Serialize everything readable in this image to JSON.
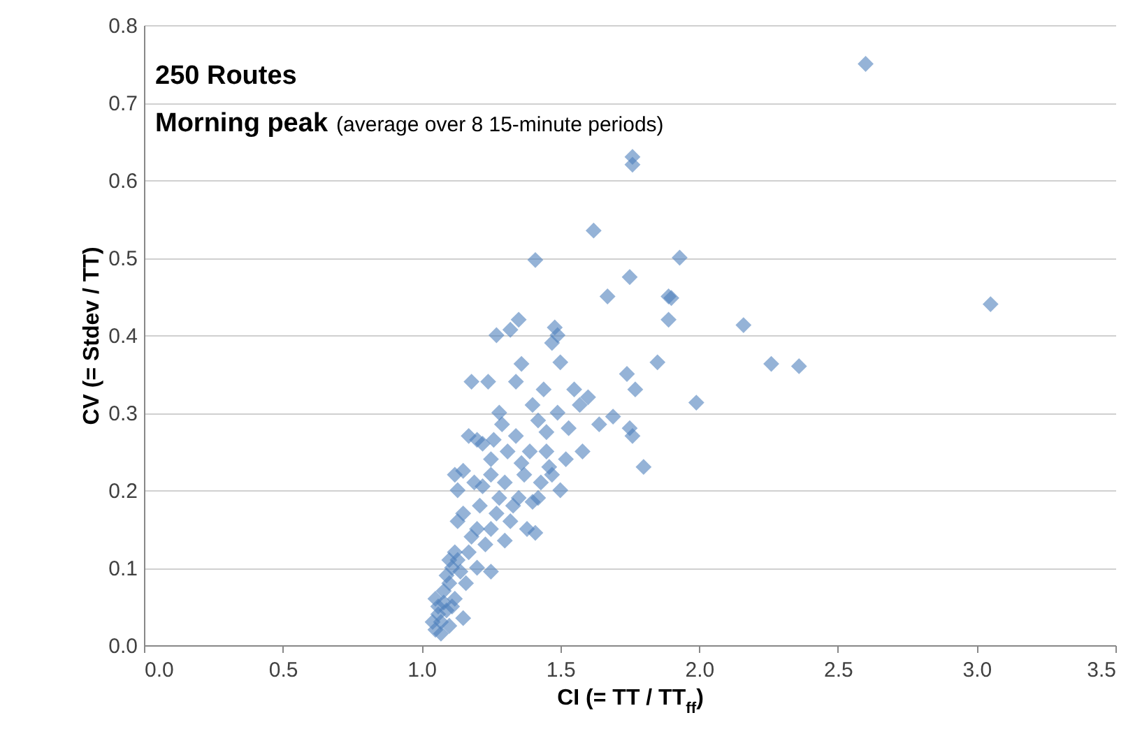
{
  "chart_data": {
    "type": "scatter",
    "title": "250 Routes",
    "annotations": [
      "Morning peak",
      "(average over 8 15-minute periods)"
    ],
    "xlabel": "CI (= TT / TT$_{ff}$)",
    "ylabel": "CV (= Stdev / TT)",
    "marker": "diamond",
    "grid": "y",
    "xlim": [
      0,
      3.5
    ],
    "xticks": [
      {
        "value": 0,
        "label": "0.0"
      },
      0.5,
      {
        "value": 1,
        "label": "1.0"
      },
      1.5,
      {
        "value": 2,
        "label": "2.0"
      },
      2.5,
      {
        "value": 3,
        "label": "3.0"
      },
      3.5
    ],
    "ylim": [
      0,
      0.8
    ],
    "yticks": [
      {
        "value": 0,
        "label": "0.0"
      },
      0.1,
      0.2,
      0.3,
      0.4,
      0.5,
      0.6,
      0.7,
      0.8
    ],
    "series": [
      {
        "color": "#4f81bd",
        "x": [
          2.6,
          3.05,
          1.76,
          1.76,
          1.62,
          1.41,
          1.93,
          1.75,
          1.89,
          1.9,
          1.67,
          1.89,
          2.16,
          1.35,
          1.27,
          1.32,
          1.48,
          1.49,
          1.47,
          1.85,
          2.26,
          2.36,
          1.74,
          1.36,
          1.5,
          1.77,
          1.99,
          1.8,
          1.76,
          1.75,
          1.69,
          1.64,
          1.6,
          1.55,
          1.57,
          1.58,
          1.52,
          1.45,
          1.42,
          1.4,
          1.44,
          1.34,
          1.18,
          1.24,
          1.28,
          1.29,
          1.2,
          1.17,
          1.22,
          1.31,
          1.25,
          1.15,
          1.12,
          1.13,
          1.19,
          1.25,
          1.3,
          1.37,
          1.43,
          1.47,
          1.4,
          1.35,
          1.28,
          1.21,
          1.15,
          1.13,
          1.2,
          1.25,
          1.32,
          1.38,
          1.41,
          1.3,
          1.23,
          1.17,
          1.12,
          1.11,
          1.14,
          1.2,
          1.25,
          1.16,
          1.1,
          1.08,
          1.12,
          1.06,
          1.09,
          1.07,
          1.05,
          1.1,
          1.15,
          1.08,
          1.06,
          1.07,
          1.11,
          1.09,
          1.13,
          1.18,
          1.22,
          1.27,
          1.33,
          1.36,
          1.39,
          1.34,
          1.45,
          1.49,
          1.53,
          1.46,
          1.5,
          1.42,
          1.26,
          1.1,
          1.05,
          1.04
        ],
        "values": [
          0.75,
          0.44,
          0.63,
          0.62,
          0.535,
          0.497,
          0.5,
          0.475,
          0.45,
          0.448,
          0.45,
          0.42,
          0.413,
          0.42,
          0.4,
          0.407,
          0.41,
          0.4,
          0.39,
          0.365,
          0.363,
          0.36,
          0.35,
          0.363,
          0.365,
          0.33,
          0.313,
          0.23,
          0.27,
          0.28,
          0.295,
          0.285,
          0.32,
          0.33,
          0.31,
          0.25,
          0.24,
          0.25,
          0.29,
          0.31,
          0.33,
          0.34,
          0.34,
          0.34,
          0.3,
          0.285,
          0.265,
          0.27,
          0.26,
          0.25,
          0.24,
          0.225,
          0.22,
          0.2,
          0.21,
          0.22,
          0.21,
          0.22,
          0.21,
          0.22,
          0.185,
          0.19,
          0.19,
          0.18,
          0.17,
          0.16,
          0.15,
          0.15,
          0.16,
          0.15,
          0.145,
          0.135,
          0.13,
          0.12,
          0.12,
          0.1,
          0.095,
          0.1,
          0.095,
          0.08,
          0.08,
          0.07,
          0.06,
          0.05,
          0.045,
          0.03,
          0.02,
          0.025,
          0.035,
          0.055,
          0.04,
          0.015,
          0.05,
          0.09,
          0.11,
          0.14,
          0.205,
          0.17,
          0.18,
          0.235,
          0.25,
          0.27,
          0.275,
          0.3,
          0.28,
          0.23,
          0.2,
          0.19,
          0.265,
          0.11,
          0.06,
          0.03
        ]
      }
    ]
  }
}
